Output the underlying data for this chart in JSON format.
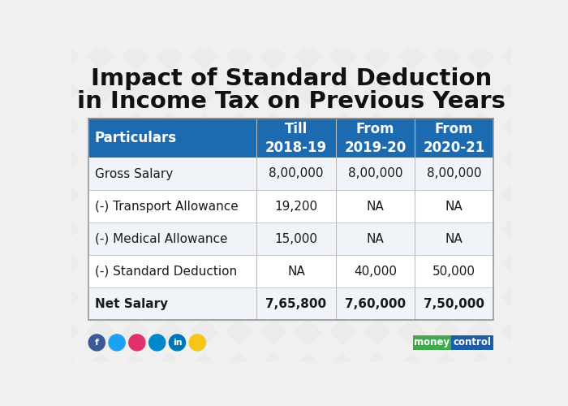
{
  "title_line1": "Impact of Standard Deduction",
  "title_line2": "in Income Tax on Previous Years",
  "header_bg": "#1c6bb0",
  "header_text_color": "#ffffff",
  "row_bg_even": "#f0f4f8",
  "row_bg_odd": "#ffffff",
  "border_color": "#cccccc",
  "bg_color": "#f0f0f0",
  "columns": [
    "Particulars",
    "Till\n2018-19",
    "From\n2019-20",
    "From\n2020-21"
  ],
  "rows": [
    [
      "Gross Salary",
      "8,00,000",
      "8,00,000",
      "8,00,000"
    ],
    [
      "(-) Transport Allowance",
      "19,200",
      "NA",
      "NA"
    ],
    [
      "(-) Medical Allowance",
      "15,000",
      "NA",
      "NA"
    ],
    [
      "(-) Standard Deduction",
      "NA",
      "40,000",
      "50,000"
    ],
    [
      "Net Salary",
      "7,65,800",
      "7,60,000",
      "7,50,000"
    ]
  ],
  "title_color": "#111111",
  "moneycontrol_green": "#3daa4c",
  "moneycontrol_blue": "#1a5ea8",
  "social_colors": [
    "#3b5998",
    "#1da1f2",
    "#e1306c",
    "#0088cc",
    "#0077b5",
    "#f5c518"
  ]
}
